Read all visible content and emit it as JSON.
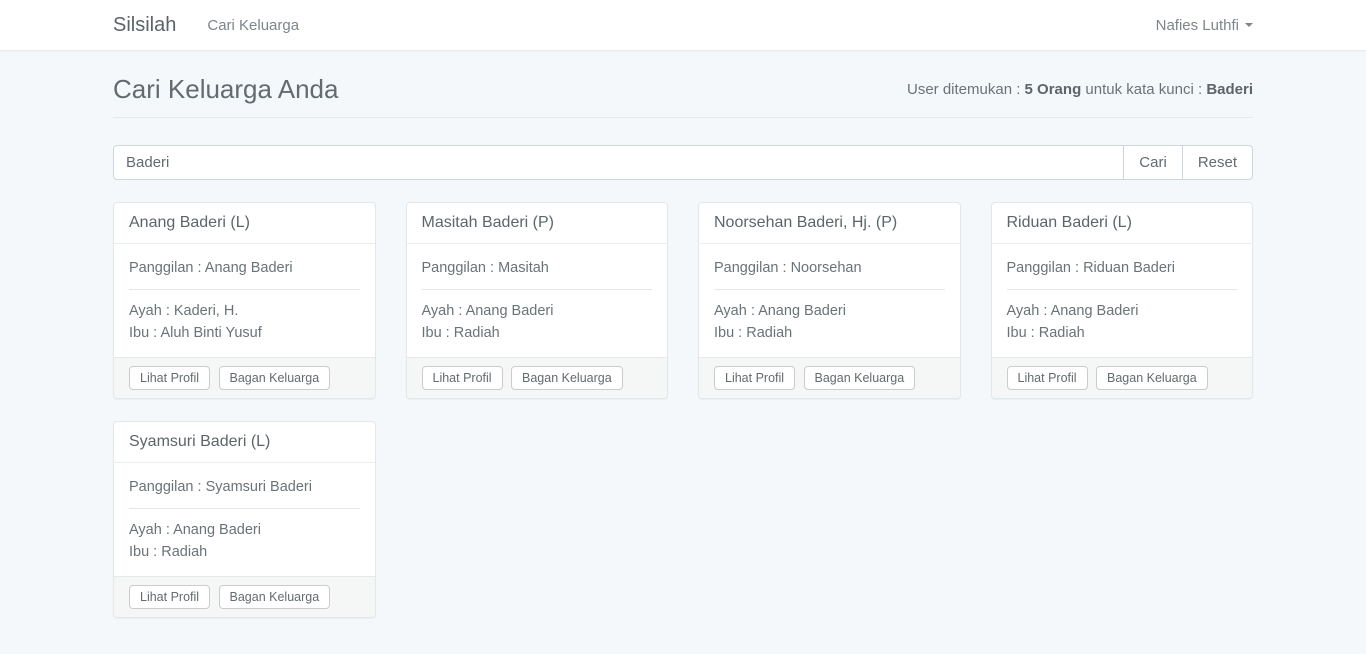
{
  "navbar": {
    "brand": "Silsilah",
    "nav_items": [
      {
        "label": "Cari Keluarga"
      }
    ],
    "user_menu": {
      "name": "Nafies Luthfi"
    }
  },
  "page_header": {
    "title": "Cari Keluarga Anda",
    "result": {
      "prefix": "User ditemukan : ",
      "count": "5 Orang",
      "middle": " untuk kata kunci : ",
      "keyword": "Baderi"
    }
  },
  "search_form": {
    "input_value": "Baderi",
    "submit_label": "Cari",
    "reset_label": "Reset"
  },
  "card_actions": {
    "view_profile_label": "Lihat Profil",
    "family_chart_label": "Bagan Keluarga"
  },
  "cards": [
    {
      "title": "Anang Baderi (L)",
      "nickname_line": "Panggilan : Anang Baderi",
      "father_line": "Ayah : Kaderi, H.",
      "mother_line": "Ibu : Aluh Binti Yusuf"
    },
    {
      "title": "Masitah Baderi (P)",
      "nickname_line": "Panggilan : Masitah",
      "father_line": "Ayah : Anang Baderi",
      "mother_line": "Ibu : Radiah"
    },
    {
      "title": "Noorsehan Baderi, Hj. (P)",
      "nickname_line": "Panggilan : Noorsehan",
      "father_line": "Ayah : Anang Baderi",
      "mother_line": "Ibu : Radiah"
    },
    {
      "title": "Riduan Baderi (L)",
      "nickname_line": "Panggilan : Riduan Baderi",
      "father_line": "Ayah : Anang Baderi",
      "mother_line": "Ibu : Radiah"
    },
    {
      "title": "Syamsuri Baderi (L)",
      "nickname_line": "Panggilan : Syamsuri Baderi",
      "father_line": "Ayah : Anang Baderi",
      "mother_line": "Ibu : Radiah"
    }
  ],
  "colors": {
    "background": "#f5f8fa",
    "navbar_bg": "#ffffff",
    "text_gray": "#636b6f",
    "card_border": "#e1e7ea",
    "footer_bg": "#f5f6f6"
  }
}
